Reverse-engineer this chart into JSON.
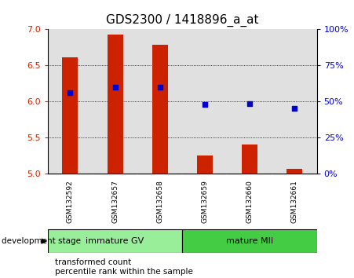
{
  "title": "GDS2300 / 1418896_a_at",
  "samples": [
    "GSM132592",
    "GSM132657",
    "GSM132658",
    "GSM132659",
    "GSM132660",
    "GSM132661"
  ],
  "bar_values": [
    6.61,
    6.93,
    6.78,
    5.25,
    5.4,
    5.07
  ],
  "bar_bottom": 5.0,
  "percentile_values": [
    6.12,
    6.2,
    6.2,
    5.96,
    5.97,
    5.9
  ],
  "ylim": [
    5.0,
    7.0
  ],
  "yticks_left": [
    5.0,
    5.5,
    6.0,
    6.5,
    7.0
  ],
  "yticks_right_labels": [
    "0%",
    "25%",
    "50%",
    "75%",
    "100%"
  ],
  "yticks_right_vals": [
    5.0,
    5.5,
    6.0,
    6.5,
    7.0
  ],
  "bar_color": "#cc2200",
  "percentile_color": "#0000cc",
  "bg_plot": "#e0e0e0",
  "bg_labels": "#c8c8c8",
  "group1_label": "immature GV",
  "group2_label": "mature MII",
  "group1_color": "#99ee99",
  "group2_color": "#44cc44",
  "xlabel_label": "development stage",
  "legend_bar_label": "transformed count",
  "legend_pct_label": "percentile rank within the sample",
  "title_fontsize": 11,
  "tick_fontsize": 8,
  "legend_fontsize": 7.5
}
